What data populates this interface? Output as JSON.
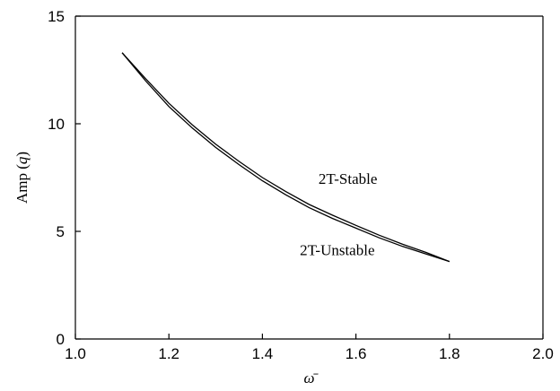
{
  "chart_data": {
    "type": "line",
    "title": "",
    "xlabel": "ω̄",
    "ylabel_prefix": "Amp (",
    "ylabel_var": "q",
    "ylabel_suffix": ")",
    "xlim": [
      1.0,
      2.0
    ],
    "ylim": [
      0,
      15
    ],
    "x_ticks": [
      1.0,
      1.2,
      1.4,
      1.6,
      1.8,
      2.0
    ],
    "x_tick_labels": [
      "1.0",
      "1.2",
      "1.4",
      "1.6",
      "1.8",
      "2.0"
    ],
    "y_ticks": [
      0,
      5,
      10,
      15
    ],
    "y_tick_labels": [
      "0",
      "5",
      "10",
      "15"
    ],
    "grid": false,
    "legend": "none",
    "series": [
      {
        "x": [
          1.1,
          1.15,
          1.2,
          1.25,
          1.3,
          1.35,
          1.4,
          1.45,
          1.5,
          1.55,
          1.6,
          1.65,
          1.7,
          1.75,
          1.8
        ],
        "y": [
          13.3,
          12.0,
          10.8,
          9.8,
          8.9,
          8.1,
          7.35,
          6.7,
          6.1,
          5.6,
          5.15,
          4.7,
          4.3,
          3.95,
          3.6
        ]
      },
      {
        "x": [
          1.1,
          1.15,
          1.2,
          1.25,
          1.3,
          1.35,
          1.4,
          1.45,
          1.5,
          1.55,
          1.6,
          1.65,
          1.7,
          1.75,
          1.8
        ],
        "y": [
          13.3,
          12.1,
          10.95,
          9.95,
          9.05,
          8.25,
          7.5,
          6.85,
          6.25,
          5.75,
          5.28,
          4.82,
          4.4,
          4.02,
          3.6
        ]
      }
    ],
    "annotations": [
      {
        "text": "2T-Stable",
        "x": 1.52,
        "y": 7.2
      },
      {
        "text": "2T-Unstable",
        "x": 1.48,
        "y": 3.9
      }
    ]
  }
}
